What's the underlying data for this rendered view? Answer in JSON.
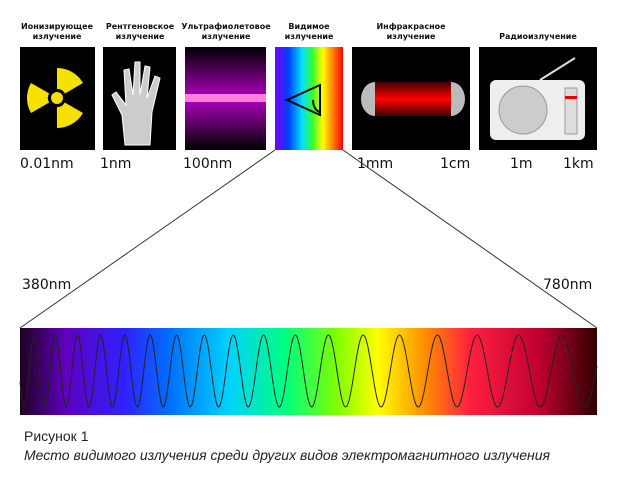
{
  "bands": [
    {
      "lines": [
        "Ионизирующее",
        "излучение"
      ]
    },
    {
      "lines": [
        "Рентгеновское",
        "излучение"
      ]
    },
    {
      "lines": [
        "Ультрафиолетовое",
        "излучение"
      ]
    },
    {
      "lines": [
        "Видимое",
        "излучение"
      ]
    },
    {
      "lines": [
        "Инфракрасное",
        "излучение"
      ]
    },
    {
      "lines": [
        "Радиоизлучение"
      ]
    }
  ],
  "scale": [
    "0.01nm",
    "1nm",
    "100nm",
    "1mm",
    "1cm",
    "1m",
    "1km"
  ],
  "visible_range": {
    "start": "380nm",
    "end": "780nm"
  },
  "caption": {
    "number": "Рисунок 1",
    "text": "Место видимого излучения среди других видов электромагнитного излучения"
  }
}
